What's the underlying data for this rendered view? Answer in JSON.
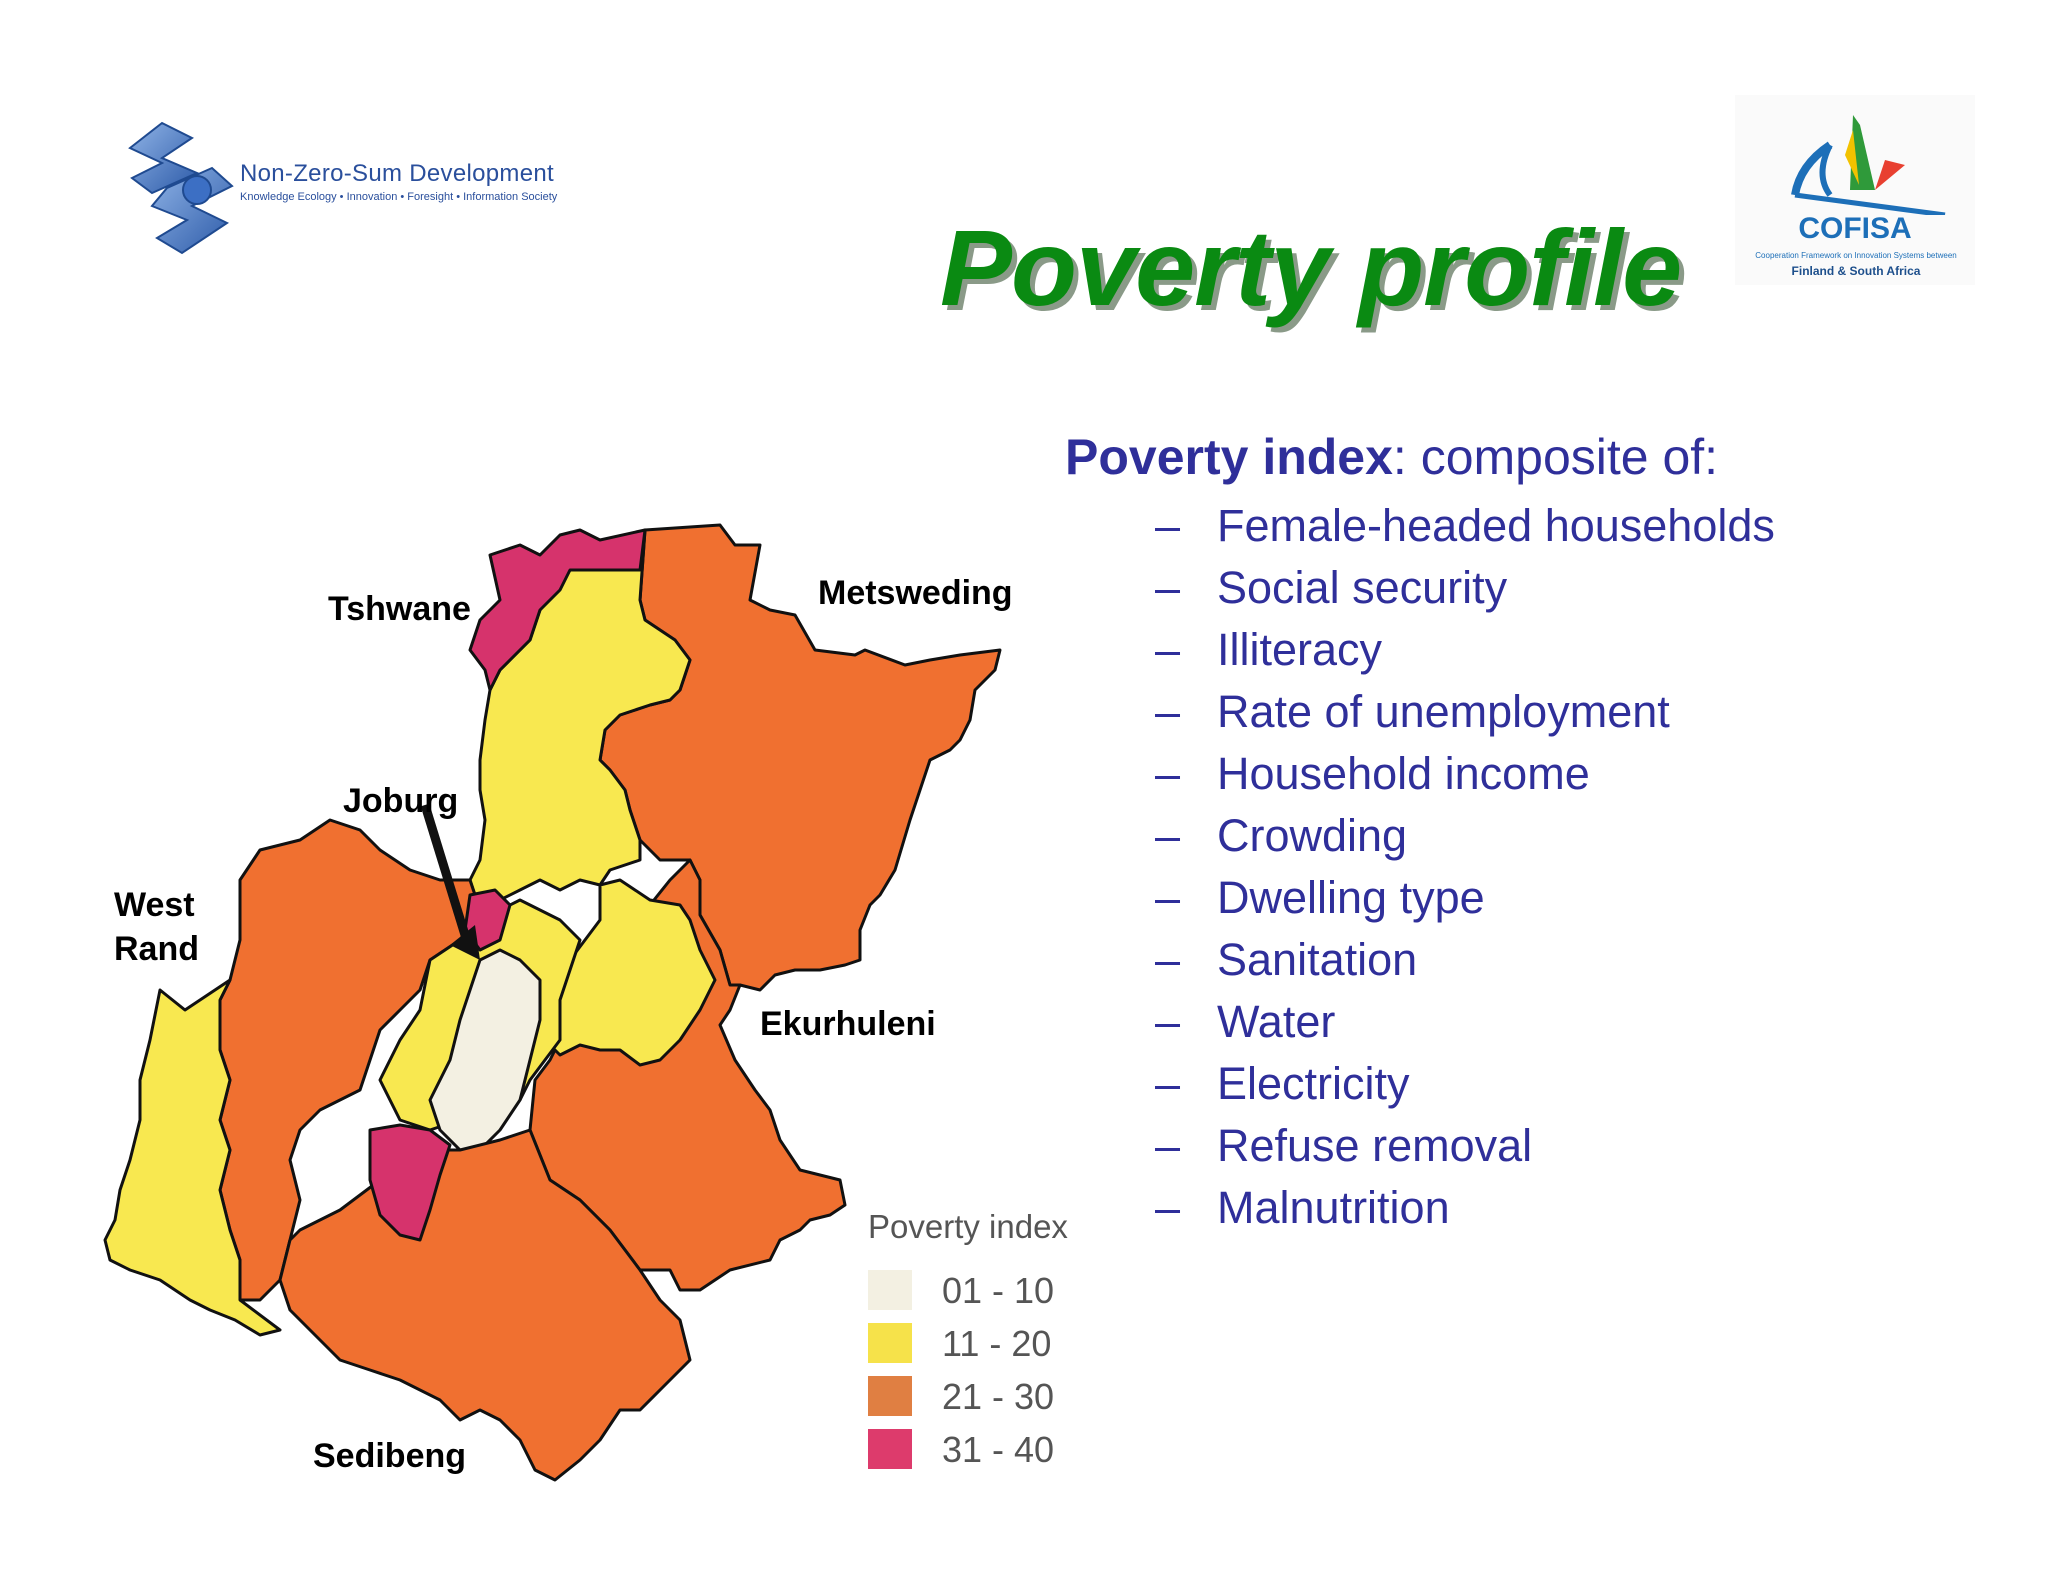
{
  "logos": {
    "nzsd": {
      "name": "Non-Zero-Sum Development",
      "tagline": "Knowledge Ecology • Innovation • Foresight • Information Society"
    },
    "cofisa": {
      "name": "COFISA",
      "subtitle": "Cooperation Framework on Innovation Systems between",
      "subtitle2": "Finland & South Africa"
    }
  },
  "title": "Poverty profile",
  "poverty_index": {
    "heading_bold": "Poverty index",
    "heading_rest": ": composite of:",
    "items": [
      "Female-headed households",
      "Social security",
      "Illiteracy",
      "Rate of unemployment",
      "Household income",
      "Crowding",
      "Dwelling type",
      "Sanitation",
      "Water",
      "Electricity",
      "Refuse removal",
      "Malnutrition"
    ]
  },
  "map": {
    "regions": {
      "tshwane": "Tshwane",
      "metsweding": "Metsweding",
      "joburg": "Joburg",
      "west_rand_1": "West",
      "west_rand_2": "Rand",
      "ekurhuleni": "Ekurhuleni",
      "sedibeng": "Sedibeng"
    },
    "legend": {
      "title": "Poverty index",
      "items": [
        {
          "label": "01 - 10",
          "color": "#f3f0e2"
        },
        {
          "label": "11 - 20",
          "color": "#f6e24a"
        },
        {
          "label": "21 - 30",
          "color": "#e07f42"
        },
        {
          "label": "31 - 40",
          "color": "#dd3b6c"
        }
      ]
    },
    "colors": {
      "low": "#f3f0e2",
      "lowmid": "#f8e850",
      "mid": "#f07030",
      "high": "#d6336c"
    }
  }
}
